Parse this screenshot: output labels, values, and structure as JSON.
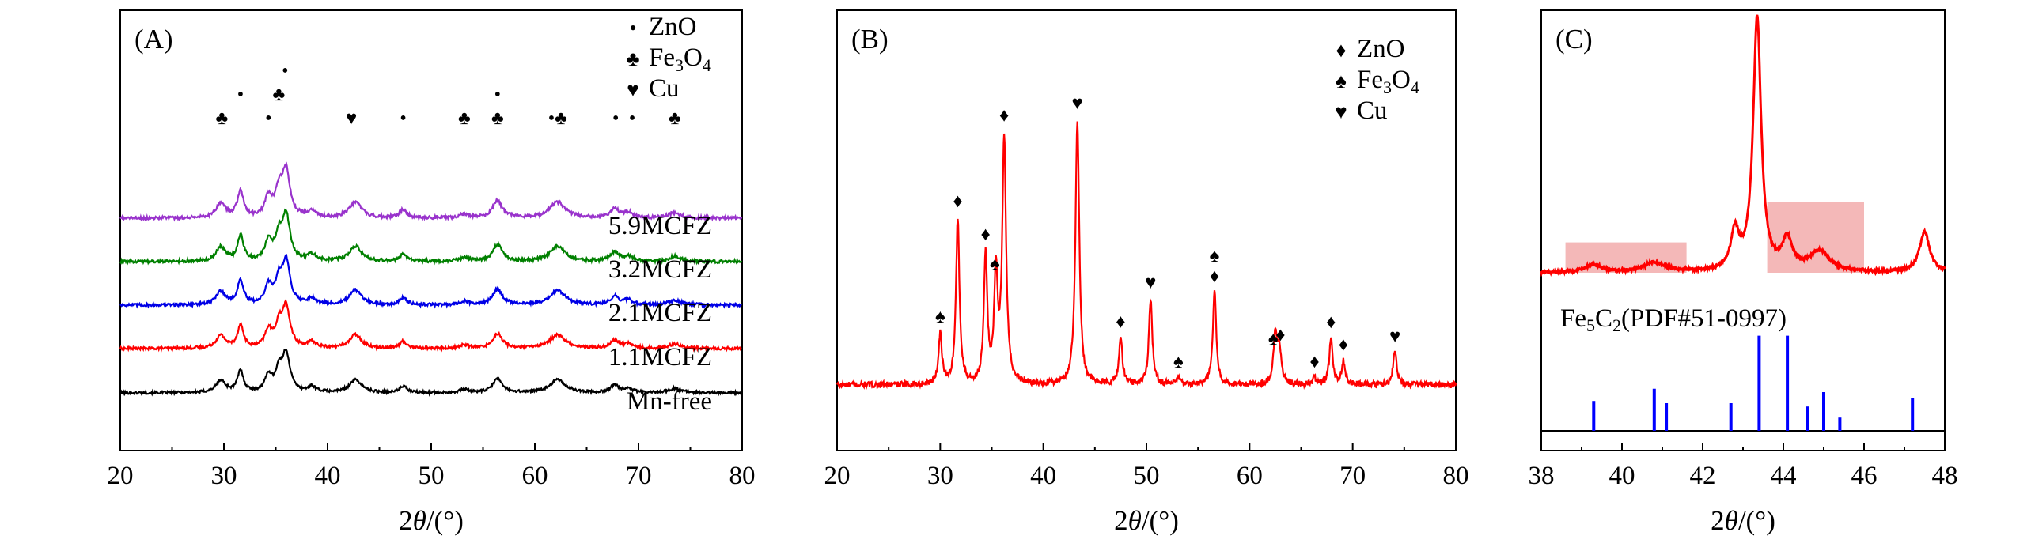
{
  "chart_data": [
    {
      "id": "A",
      "type": "line",
      "panel_label": "(A)",
      "xlabel_parts": [
        "2",
        "θ",
        "/(°)"
      ],
      "xlim": [
        20,
        80
      ],
      "xticks": [
        20,
        30,
        40,
        50,
        60,
        70,
        80
      ],
      "y_ticks_shown": false,
      "legend": [
        {
          "symbol": "•",
          "text": "ZnO"
        },
        {
          "symbol": "♣",
          "text": "Fe",
          "sub": "3",
          "text2": "O",
          "sub2": "4"
        },
        {
          "symbol": "♥",
          "text": "Cu"
        }
      ],
      "peaks": [
        {
          "x": 29.7,
          "h": 0.55,
          "w": 0.55
        },
        {
          "x": 31.6,
          "h": 1.0,
          "w": 0.35
        },
        {
          "x": 34.3,
          "h": 0.75,
          "w": 0.4
        },
        {
          "x": 35.3,
          "h": 0.9,
          "w": 0.4
        },
        {
          "x": 36.0,
          "h": 1.75,
          "w": 0.45
        },
        {
          "x": 38.5,
          "h": 0.25,
          "w": 0.5
        },
        {
          "x": 42.7,
          "h": 0.6,
          "w": 0.7
        },
        {
          "x": 47.3,
          "h": 0.3,
          "w": 0.4
        },
        {
          "x": 53.2,
          "h": 0.15,
          "w": 0.5
        },
        {
          "x": 56.4,
          "h": 0.65,
          "w": 0.55
        },
        {
          "x": 62.2,
          "h": 0.6,
          "w": 0.9
        },
        {
          "x": 67.7,
          "h": 0.35,
          "w": 0.5
        },
        {
          "x": 69.0,
          "h": 0.2,
          "w": 0.5
        },
        {
          "x": 73.5,
          "h": 0.2,
          "w": 0.7
        }
      ],
      "series": [
        {
          "name": "Mn-free",
          "color": "#000000"
        },
        {
          "name": "1.1MCFZ",
          "color": "#ff0000"
        },
        {
          "name": "2.1MCFZ",
          "color": "#0000e6"
        },
        {
          "name": "3.2MCFZ",
          "color": "#008000"
        },
        {
          "name": "5.9MCFZ",
          "color": "#9933cc"
        }
      ],
      "markers": [
        {
          "x": 29.8,
          "level": 0,
          "symbol": "♣"
        },
        {
          "x": 31.6,
          "level": 1,
          "symbol": "•"
        },
        {
          "x": 34.3,
          "level": 0,
          "symbol": "•"
        },
        {
          "x": 35.3,
          "level": 1,
          "symbol": "♣"
        },
        {
          "x": 35.9,
          "level": 2,
          "symbol": "•"
        },
        {
          "x": 42.3,
          "level": 0,
          "symbol": "♥"
        },
        {
          "x": 47.3,
          "level": 0,
          "symbol": "•"
        },
        {
          "x": 53.2,
          "level": 0,
          "symbol": "♣"
        },
        {
          "x": 56.4,
          "level": 1,
          "symbol": "•"
        },
        {
          "x": 56.4,
          "level": 0,
          "symbol": "♣"
        },
        {
          "x": 62.2,
          "level": 0,
          "symbol": "•♣"
        },
        {
          "x": 67.8,
          "level": 0,
          "symbol": "•"
        },
        {
          "x": 69.4,
          "level": 0,
          "symbol": "•"
        },
        {
          "x": 73.5,
          "level": 0,
          "symbol": "♣"
        }
      ]
    },
    {
      "id": "B",
      "type": "line",
      "panel_label": "(B)",
      "xlabel_parts": [
        "2",
        "θ",
        "/(°)"
      ],
      "xlim": [
        20,
        80
      ],
      "xticks": [
        20,
        30,
        40,
        50,
        60,
        70,
        80
      ],
      "y_ticks_shown": false,
      "legend": [
        {
          "symbol": "♦",
          "text": "ZnO"
        },
        {
          "symbol": "♠",
          "text": "Fe",
          "sub": "3",
          "text2": "O",
          "sub2": "4"
        },
        {
          "symbol": "♥",
          "text": "Cu"
        }
      ],
      "series": [
        {
          "name": "",
          "color": "#ff0000"
        }
      ],
      "peaks": [
        {
          "x": 30.0,
          "h": 0.15,
          "w": 0.2
        },
        {
          "x": 31.7,
          "h": 0.5,
          "w": 0.2
        },
        {
          "x": 34.4,
          "h": 0.38,
          "w": 0.2
        },
        {
          "x": 35.4,
          "h": 0.32,
          "w": 0.2
        },
        {
          "x": 36.2,
          "h": 0.74,
          "w": 0.22
        },
        {
          "x": 43.3,
          "h": 0.8,
          "w": 0.22
        },
        {
          "x": 47.5,
          "h": 0.14,
          "w": 0.2
        },
        {
          "x": 50.4,
          "h": 0.26,
          "w": 0.2
        },
        {
          "x": 53.1,
          "h": 0.02,
          "w": 0.2
        },
        {
          "x": 56.6,
          "h": 0.28,
          "w": 0.2
        },
        {
          "x": 62.5,
          "h": 0.15,
          "w": 0.22
        },
        {
          "x": 62.9,
          "h": 0.1,
          "w": 0.2
        },
        {
          "x": 66.3,
          "h": 0.02,
          "w": 0.2
        },
        {
          "x": 67.9,
          "h": 0.14,
          "w": 0.2
        },
        {
          "x": 69.1,
          "h": 0.07,
          "w": 0.2
        },
        {
          "x": 74.1,
          "h": 0.1,
          "w": 0.22
        }
      ],
      "markers": [
        {
          "x": 30.0,
          "symbol": "♠"
        },
        {
          "x": 31.7,
          "symbol": "♦"
        },
        {
          "x": 34.4,
          "symbol": "♦"
        },
        {
          "x": 35.3,
          "symbol": "♠"
        },
        {
          "x": 36.2,
          "symbol": "♦"
        },
        {
          "x": 43.3,
          "symbol": "♥"
        },
        {
          "x": 47.5,
          "symbol": "♦"
        },
        {
          "x": 50.4,
          "symbol": "♥"
        },
        {
          "x": 53.1,
          "symbol": "♠"
        },
        {
          "x": 56.6,
          "symbol": "♦"
        },
        {
          "x": 56.6,
          "symbol": "♠",
          "stack": 1
        },
        {
          "x": 62.3,
          "symbol": "♠"
        },
        {
          "x": 63.0,
          "symbol": "♦"
        },
        {
          "x": 66.3,
          "symbol": "♦"
        },
        {
          "x": 67.9,
          "symbol": "♦"
        },
        {
          "x": 69.1,
          "symbol": "♦"
        },
        {
          "x": 74.1,
          "symbol": "♥"
        }
      ]
    },
    {
      "id": "C",
      "type": "line",
      "panel_label": "(C)",
      "xlabel_parts": [
        "2",
        "θ",
        "/(°)"
      ],
      "xlim": [
        38,
        48
      ],
      "xticks": [
        38,
        40,
        42,
        44,
        46,
        48
      ],
      "y_ticks_shown": false,
      "series": [
        {
          "name": "",
          "color": "#ff0000"
        }
      ],
      "peaks": [
        {
          "x": 39.3,
          "h": 0.03,
          "w": 0.25
        },
        {
          "x": 40.8,
          "h": 0.04,
          "w": 0.3
        },
        {
          "x": 42.8,
          "h": 0.15,
          "w": 0.12
        },
        {
          "x": 43.35,
          "h": 1.0,
          "w": 0.12
        },
        {
          "x": 44.1,
          "h": 0.12,
          "w": 0.15
        },
        {
          "x": 44.9,
          "h": 0.08,
          "w": 0.3
        },
        {
          "x": 47.5,
          "h": 0.16,
          "w": 0.15
        }
      ],
      "highlight_regions": [
        {
          "x0": 38.6,
          "x1": 41.6,
          "y0": 0.0,
          "y1": 0.12
        },
        {
          "x0": 43.6,
          "x1": 46.0,
          "y0": 0.0,
          "y1": 0.28
        }
      ],
      "highlight_color": "#f4b8b8",
      "reference": {
        "label_parts": [
          "Fe",
          "5",
          "C",
          "2",
          "(PDF#51-0997)"
        ],
        "color": "#0000ff",
        "bars": [
          {
            "x": 39.3,
            "h": 0.27
          },
          {
            "x": 40.8,
            "h": 0.38
          },
          {
            "x": 41.1,
            "h": 0.25
          },
          {
            "x": 42.7,
            "h": 0.25
          },
          {
            "x": 43.4,
            "h": 0.86
          },
          {
            "x": 44.1,
            "h": 0.86
          },
          {
            "x": 44.6,
            "h": 0.22
          },
          {
            "x": 45.0,
            "h": 0.35
          },
          {
            "x": 45.4,
            "h": 0.12
          },
          {
            "x": 47.2,
            "h": 0.3
          }
        ]
      }
    }
  ]
}
